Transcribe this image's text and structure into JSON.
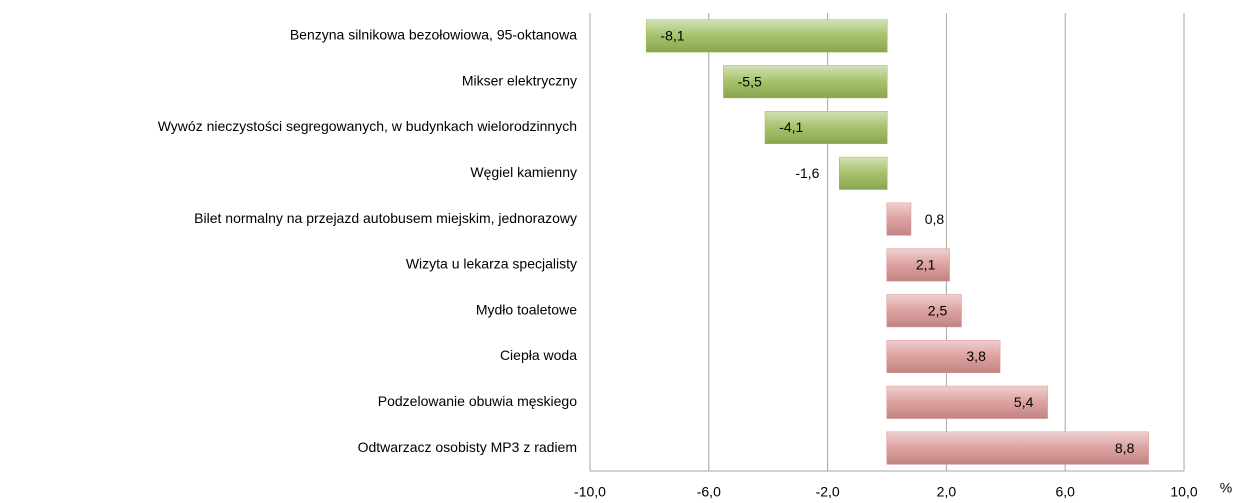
{
  "chart_data": {
    "type": "barh",
    "categories": [
      "Benzyna silnikowa bezołowiowa, 95-oktanowa",
      "Mikser elektryczny",
      "Wywóz nieczystości  segregowanych, w budynkach wielorodzinnych",
      "Węgiel kamienny",
      "Bilet normalny na przejazd autobusem miejskim, jednorazowy",
      "Wizyta u lekarza specjalisty",
      "Mydło toaletowe",
      "Ciepła woda",
      "Podzelowanie obuwia męskiego",
      "Odtwarzacz osobisty MP3 z radiem"
    ],
    "values": [
      -8.1,
      -5.5,
      -4.1,
      -1.6,
      0.8,
      2.1,
      2.5,
      3.8,
      5.4,
      8.8
    ],
    "value_labels": [
      "-8,1",
      "-5,5",
      "-4,1",
      "-1,6",
      "0,8",
      "2,1",
      "2,5",
      "3,8",
      "5,4",
      "8,8"
    ],
    "colors": [
      "#9bbb59",
      "#9bbb59",
      "#9bbb59",
      "#9bbb59",
      "#d99694",
      "#d99694",
      "#d99694",
      "#d99694",
      "#d99694",
      "#d99694"
    ],
    "x_label": "%",
    "xlim": [
      -10,
      10
    ],
    "xticks": [
      {
        "value": -10,
        "label": "-10,0"
      },
      {
        "value": -6,
        "label": "-6,0"
      },
      {
        "value": -2,
        "label": "-2,0"
      },
      {
        "value": 2,
        "label": "2,0"
      },
      {
        "value": 6,
        "label": "6,0"
      },
      {
        "value": 10,
        "label": "10,0"
      }
    ],
    "grid": true
  }
}
